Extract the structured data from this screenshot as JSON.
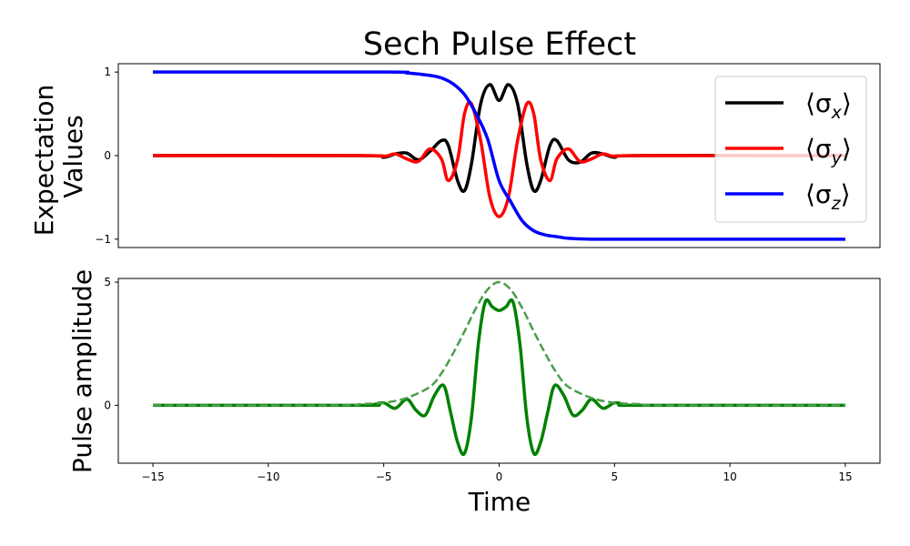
{
  "chart_data": [
    {
      "type": "line",
      "title": "Sech Pulse Effect",
      "xlabel": "",
      "ylabel": [
        "Expectation",
        "Values"
      ],
      "xlim": [
        -16.5,
        16.5
      ],
      "ylim": [
        -1.1,
        1.1
      ],
      "yticks": [
        1,
        0,
        -1
      ],
      "ytick_labels": [
        "1",
        "0",
        "−1"
      ],
      "legend": "top-right",
      "series": [
        {
          "name": "⟨σx⟩",
          "legend_main": "⟨σ",
          "legend_sub": "x",
          "legend_close": "⟩",
          "color": "#000000",
          "x": [
            -15,
            -6,
            -5,
            -4.5,
            -4,
            -3.5,
            -3,
            -2.5,
            -2.2,
            -1.8,
            -1.5,
            -1.2,
            -0.8,
            -0.4,
            0,
            0.4,
            0.8,
            1.2,
            1.5,
            1.8,
            2.2,
            2.5,
            3,
            3.5,
            4,
            4.5,
            5,
            6,
            15
          ],
          "values": [
            0,
            0,
            -0.02,
            0.02,
            0.03,
            -0.05,
            0.05,
            0.18,
            0.12,
            -0.3,
            -0.42,
            -0.1,
            0.62,
            0.85,
            0.66,
            0.85,
            0.62,
            -0.1,
            -0.42,
            -0.3,
            0.12,
            0.18,
            -0.05,
            -0.08,
            0.03,
            0.02,
            -0.02,
            0,
            0
          ]
        },
        {
          "name": "⟨σy⟩",
          "legend_main": "⟨σ",
          "legend_sub": "y",
          "legend_close": "⟩",
          "color": "#ff0000",
          "x": [
            -15,
            -6,
            -5,
            -4.5,
            -4,
            -3.5,
            -3,
            -2.5,
            -2.2,
            -1.8,
            -1.5,
            -1.2,
            -0.8,
            -0.4,
            0,
            0.4,
            0.8,
            1.2,
            1.5,
            1.8,
            2.2,
            2.5,
            3,
            3.5,
            4,
            4.5,
            5,
            6,
            15
          ],
          "values": [
            0,
            0,
            -0.01,
            0.02,
            -0.04,
            -0.07,
            0.08,
            -0.04,
            -0.3,
            -0.05,
            0.5,
            0.62,
            0.18,
            -0.5,
            -0.73,
            -0.5,
            0.18,
            0.62,
            0.5,
            -0.05,
            -0.3,
            -0.04,
            0.08,
            -0.07,
            -0.04,
            0.02,
            -0.01,
            0,
            0
          ]
        },
        {
          "name": "⟨σz⟩",
          "legend_main": "⟨σ",
          "legend_sub": "z",
          "legend_close": "⟩",
          "color": "#0000ff",
          "x": [
            -15,
            -5,
            -4,
            -3,
            -2.5,
            -2,
            -1.5,
            -1,
            -0.5,
            0,
            0.5,
            1,
            1.5,
            2,
            2.5,
            3,
            4,
            5,
            15
          ],
          "values": [
            1,
            1,
            0.99,
            0.96,
            0.93,
            0.86,
            0.73,
            0.5,
            0.2,
            -0.3,
            -0.55,
            -0.78,
            -0.9,
            -0.95,
            -0.97,
            -0.99,
            -1.0,
            -1.0,
            -1.0
          ]
        }
      ]
    },
    {
      "type": "line",
      "title": "",
      "xlabel": "Time",
      "ylabel": [
        "Pulse amplitude"
      ],
      "xlim": [
        -16.5,
        16.5
      ],
      "ylim": [
        -2.35,
        5.15
      ],
      "xticks": [
        -15,
        -10,
        -5,
        0,
        5,
        10,
        15
      ],
      "xtick_labels": [
        "−15",
        "−10",
        "−5",
        "0",
        "5",
        "10",
        "15"
      ],
      "yticks": [
        5,
        0
      ],
      "ytick_labels": [
        "5",
        "0"
      ],
      "series": [
        {
          "style": "solid",
          "color": "#008000",
          "x": [
            -15,
            -6,
            -5.5,
            -5,
            -4.5,
            -4,
            -3.6,
            -3.2,
            -2.8,
            -2.4,
            -2.1,
            -1.8,
            -1.5,
            -1.2,
            -0.9,
            -0.6,
            -0.3,
            0,
            0.3,
            0.6,
            0.9,
            1.2,
            1.5,
            1.8,
            2.1,
            2.4,
            2.8,
            3.2,
            3.6,
            4,
            4.5,
            5,
            5.5,
            6,
            15
          ],
          "values": [
            0,
            0,
            0.02,
            0.1,
            -0.12,
            0.25,
            -0.2,
            -0.4,
            0.4,
            0.8,
            -0.3,
            -1.5,
            -1.95,
            -0.5,
            2.5,
            4.2,
            4.0,
            3.85,
            4.0,
            4.2,
            2.5,
            -0.5,
            -1.95,
            -1.5,
            -0.3,
            0.8,
            0.4,
            -0.4,
            -0.2,
            0.25,
            -0.12,
            0.1,
            0.02,
            0,
            0
          ]
        },
        {
          "style": "dashed",
          "color": "#4a9e4a",
          "x": [
            -15,
            -7,
            -6,
            -5,
            -4,
            -3,
            -2.5,
            -2,
            -1.5,
            -1,
            -0.5,
            0,
            0.5,
            1,
            1.5,
            2,
            2.5,
            3,
            4,
            5,
            6,
            7,
            15
          ],
          "values": [
            0,
            0.0,
            0.05,
            0.1,
            0.3,
            0.75,
            1.3,
            2.1,
            3.0,
            3.95,
            4.7,
            5.0,
            4.7,
            3.95,
            3.0,
            2.1,
            1.3,
            0.75,
            0.3,
            0.1,
            0.05,
            0.0,
            0
          ]
        }
      ]
    }
  ]
}
